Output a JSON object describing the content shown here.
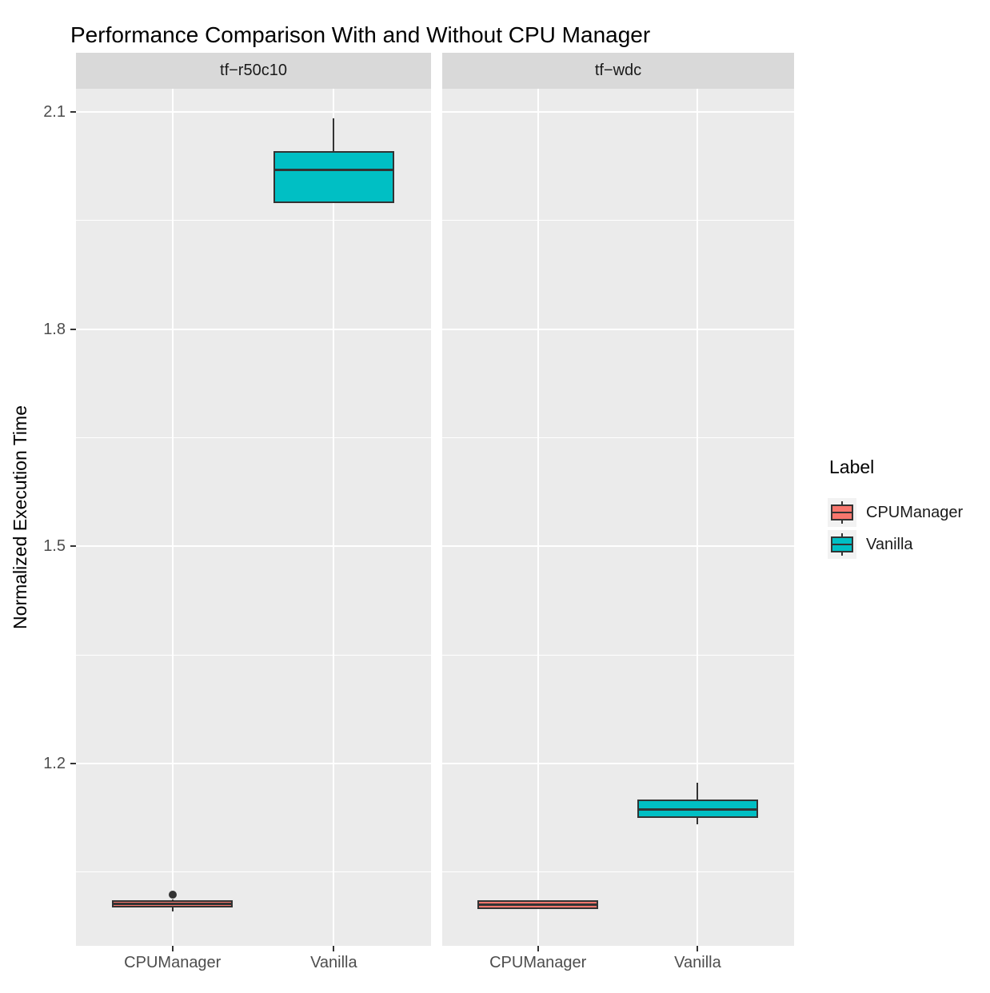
{
  "chart_data": {
    "type": "boxplot",
    "title": "Performance Comparison With and Without CPU Manager",
    "ylabel": "Normalized Execution Time",
    "facet_labels": [
      "tf−r50c10",
      "tf−wdc"
    ],
    "categories": [
      "CPUManager",
      "Vanilla"
    ],
    "y_ticks": [
      1.2,
      1.5,
      1.8,
      2.1
    ],
    "y_minor_ticks": [
      1.05,
      1.35,
      1.65,
      1.95
    ],
    "ylim": [
      0.948,
      2.132
    ],
    "grid": "on",
    "legend": {
      "title": "Label",
      "position": "right",
      "entries": [
        {
          "label": "CPUManager",
          "color": "#F8766D"
        },
        {
          "label": "Vanilla",
          "color": "#00BFC4"
        }
      ]
    },
    "series": [
      {
        "facet": "tf−r50c10",
        "label": "CPUManager",
        "color": "#F8766D",
        "whisker_low": 0.996,
        "q1": 1.001,
        "median": 1.006,
        "q3": 1.011,
        "whisker_high": 1.012,
        "outliers": [
          1.019
        ]
      },
      {
        "facet": "tf−r50c10",
        "label": "Vanilla",
        "color": "#00BFC4",
        "whisker_low": 1.974,
        "q1": 1.974,
        "median": 2.02,
        "q3": 2.046,
        "whisker_high": 2.091,
        "outliers": []
      },
      {
        "facet": "tf−wdc",
        "label": "CPUManager",
        "color": "#F8766D",
        "whisker_low": 0.999,
        "q1": 0.999,
        "median": 1.005,
        "q3": 1.011,
        "whisker_high": 1.011,
        "outliers": []
      },
      {
        "facet": "tf−wdc",
        "label": "Vanilla",
        "color": "#00BFC4",
        "whisker_low": 1.116,
        "q1": 1.125,
        "median": 1.136,
        "q3": 1.15,
        "whisker_high": 1.173,
        "outliers": []
      }
    ],
    "colors": {
      "panel_background": "#EBEBEB",
      "strip_background": "#D9D9D9",
      "gridline": "#FFFFFF",
      "box_border": "#333333",
      "axis_text": "#4D4D4D",
      "cpumanager": "#F8766D",
      "vanilla": "#00BFC4"
    }
  }
}
